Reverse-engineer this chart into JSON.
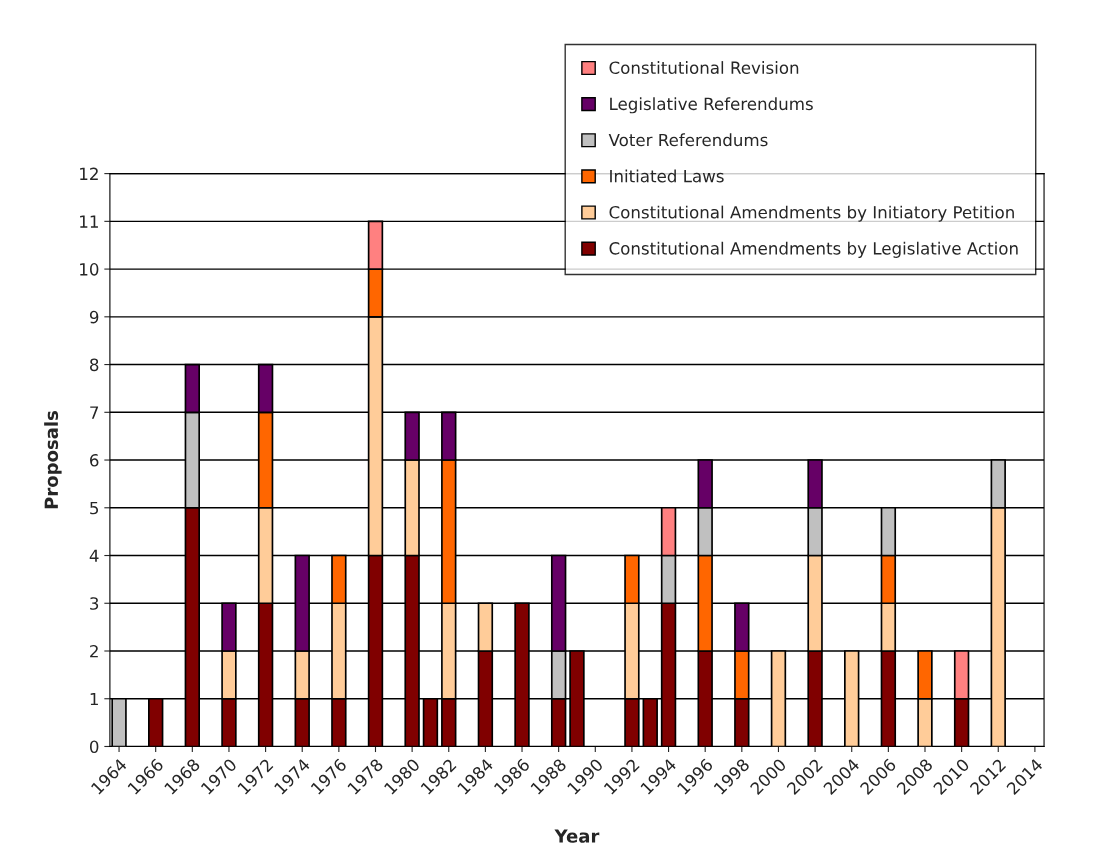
{
  "chart_data": {
    "type": "bar",
    "stacked": true,
    "xlabel": "Year",
    "ylabel": "Proposals",
    "x": [
      1964,
      1966,
      1968,
      1970,
      1972,
      1974,
      1976,
      1978,
      1980,
      1981,
      1982,
      1984,
      1986,
      1988,
      1989,
      1992,
      1993,
      1994,
      1996,
      1998,
      2000,
      2002,
      2004,
      2006,
      2008,
      2010,
      2012
    ],
    "series": [
      {
        "name": "Constitutional Amendments by Legislative Action",
        "color": "#800000",
        "values": [
          null,
          1,
          5,
          1,
          3,
          1,
          1,
          4,
          4,
          1,
          1,
          2,
          3,
          1,
          2,
          1,
          1,
          3,
          2,
          1,
          null,
          2,
          null,
          2,
          null,
          1,
          null
        ]
      },
      {
        "name": "Constitutional Amendments by Initiatory Petition",
        "color": "#ffcc99",
        "values": [
          null,
          null,
          null,
          1,
          2,
          1,
          2,
          5,
          2,
          null,
          2,
          1,
          null,
          null,
          null,
          2,
          null,
          null,
          null,
          null,
          2,
          2,
          2,
          1,
          1,
          null,
          5
        ]
      },
      {
        "name": "Initiated Laws",
        "color": "#ff6600",
        "values": [
          null,
          null,
          null,
          null,
          2,
          null,
          1,
          1,
          null,
          null,
          3,
          null,
          null,
          null,
          null,
          1,
          null,
          null,
          2,
          1,
          null,
          null,
          null,
          1,
          1,
          null,
          null
        ]
      },
      {
        "name": "Voter Referendums",
        "color": "#c0c0c0",
        "values": [
          1,
          null,
          2,
          null,
          null,
          null,
          null,
          null,
          null,
          null,
          null,
          null,
          null,
          1,
          null,
          null,
          null,
          1,
          1,
          null,
          null,
          1,
          null,
          1,
          null,
          null,
          1
        ]
      },
      {
        "name": "Legislative Referendums",
        "color": "#660066",
        "values": [
          null,
          null,
          1,
          1,
          1,
          2,
          null,
          null,
          1,
          null,
          1,
          null,
          null,
          2,
          null,
          null,
          null,
          null,
          1,
          1,
          null,
          1,
          null,
          null,
          null,
          null,
          null
        ]
      },
      {
        "name": "Constitutional Revision",
        "color": "#ff8080",
        "values": [
          null,
          null,
          null,
          null,
          null,
          null,
          null,
          1,
          null,
          null,
          null,
          null,
          null,
          null,
          null,
          null,
          null,
          1,
          null,
          null,
          null,
          null,
          null,
          null,
          null,
          1,
          null
        ]
      }
    ],
    "xlim": [
      1963.5,
      2014.5
    ],
    "xticks": [
      1964,
      1966,
      1968,
      1970,
      1972,
      1974,
      1976,
      1978,
      1980,
      1982,
      1984,
      1986,
      1988,
      1990,
      1992,
      1994,
      1996,
      1998,
      2000,
      2002,
      2004,
      2006,
      2008,
      2010,
      2012,
      2014
    ],
    "ylim": [
      0,
      12
    ],
    "yticks": [
      0,
      1,
      2,
      3,
      4,
      5,
      6,
      7,
      8,
      9,
      10,
      11,
      12
    ],
    "grid": "y",
    "legend": "top right"
  }
}
